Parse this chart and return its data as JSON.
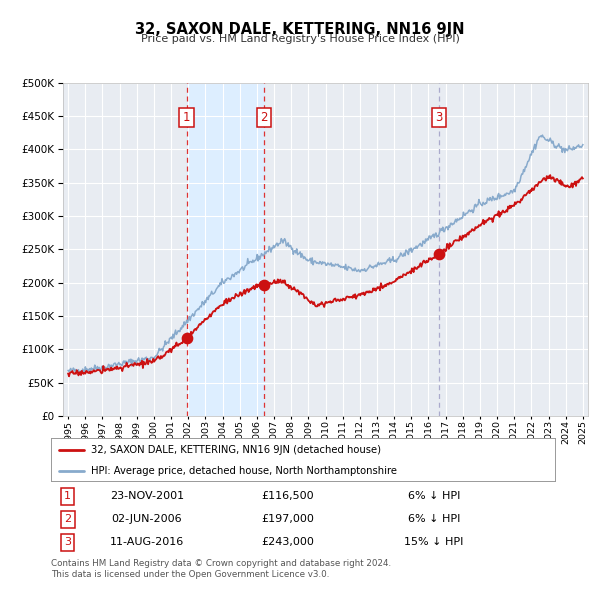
{
  "title": "32, SAXON DALE, KETTERING, NN16 9JN",
  "subtitle": "Price paid vs. HM Land Registry's House Price Index (HPI)",
  "red_label": "32, SAXON DALE, KETTERING, NN16 9JN (detached house)",
  "blue_label": "HPI: Average price, detached house, North Northamptonshire",
  "transactions": [
    {
      "num": 1,
      "date": "23-NOV-2001",
      "date_x": 2001.9,
      "price": 116500,
      "pct": "6%",
      "dir": "↓"
    },
    {
      "num": 2,
      "date": "02-JUN-2006",
      "date_x": 2006.42,
      "price": 197000,
      "pct": "6%",
      "dir": "↓"
    },
    {
      "num": 3,
      "date": "11-AUG-2016",
      "date_x": 2016.6,
      "price": 243000,
      "pct": "15%",
      "dir": "↓"
    }
  ],
  "red_color": "#cc1111",
  "blue_color": "#88aacc",
  "shade_color": "#ddeeff",
  "plot_bg": "#e8ecf2",
  "ylim": [
    0,
    500000
  ],
  "xlim_start": 1994.7,
  "xlim_end": 2025.3,
  "footer": "Contains HM Land Registry data © Crown copyright and database right 2024.\nThis data is licensed under the Open Government Licence v3.0."
}
